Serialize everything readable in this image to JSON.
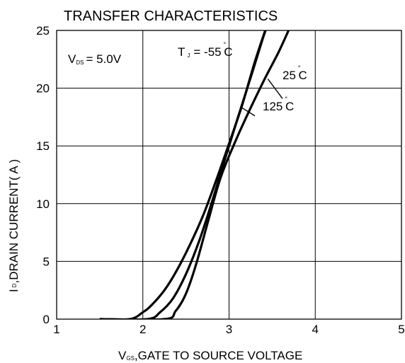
{
  "chart_data": {
    "type": "line",
    "title": "TRANSFER CHARACTERISTICS",
    "xlabel": {
      "sub": "GS",
      "rest": ",GATE TO SOURCE VOLTAGE",
      "main": "V"
    },
    "ylabel": {
      "main": "I",
      "sub": "D",
      "rest": ",DRAIN CURRENT( A )"
    },
    "xlim": [
      1,
      5
    ],
    "ylim": [
      0,
      25
    ],
    "x_ticks": [
      1,
      2,
      3,
      4,
      5
    ],
    "y_ticks": [
      0,
      5,
      10,
      15,
      20,
      25
    ],
    "grid": true,
    "annotations": {
      "vds": {
        "main": "V",
        "sub": "DS",
        "rest": "= 5.0V"
      },
      "tj": {
        "main": "T",
        "sub": "J",
        "rest": "= -55",
        "deg": "°",
        "unit": "C"
      },
      "t25": {
        "value": "25",
        "deg": "°",
        "unit": "C"
      },
      "t125": {
        "value": "125",
        "deg": "°",
        "unit": "C"
      }
    },
    "series": [
      {
        "name": "-55 °C",
        "points": [
          [
            1.5,
            0
          ],
          [
            1.85,
            0
          ],
          [
            2.0,
            0.6
          ],
          [
            2.1,
            1.2
          ],
          [
            2.25,
            2.5
          ],
          [
            2.4,
            4.3
          ],
          [
            2.55,
            6.5
          ],
          [
            2.7,
            9.0
          ],
          [
            2.85,
            12.0
          ],
          [
            3.0,
            15.2
          ],
          [
            3.15,
            18.5
          ],
          [
            3.3,
            22.3
          ],
          [
            3.42,
            25
          ]
        ]
      },
      {
        "name": "25 °C",
        "points": [
          [
            1.5,
            0
          ],
          [
            2.05,
            0
          ],
          [
            2.2,
            0.6
          ],
          [
            2.35,
            1.8
          ],
          [
            2.5,
            3.9
          ],
          [
            2.65,
            6.7
          ],
          [
            2.8,
            10.1
          ],
          [
            2.95,
            13.8
          ],
          [
            3.1,
            17.4
          ],
          [
            3.25,
            20.9
          ],
          [
            3.4,
            24.5
          ],
          [
            3.45,
            25.5
          ]
        ]
      },
      {
        "name": "125 °C",
        "points": [
          [
            1.5,
            0
          ],
          [
            2.25,
            0
          ],
          [
            2.38,
            0.7
          ],
          [
            2.5,
            2.2
          ],
          [
            2.62,
            4.8
          ],
          [
            2.75,
            8.3
          ],
          [
            2.9,
            12.2
          ],
          [
            3.05,
            15.0
          ],
          [
            3.2,
            17.5
          ],
          [
            3.4,
            20.6
          ],
          [
            3.58,
            23.2
          ],
          [
            3.72,
            25.5
          ]
        ]
      }
    ],
    "leaders": [
      {
        "label": "t25",
        "from": [
          3.45,
          20.8
        ],
        "to": [
          3.62,
          19.1
        ]
      },
      {
        "label": "t125",
        "from": [
          3.15,
          18.3
        ],
        "to": [
          3.3,
          17.6
        ]
      }
    ]
  }
}
